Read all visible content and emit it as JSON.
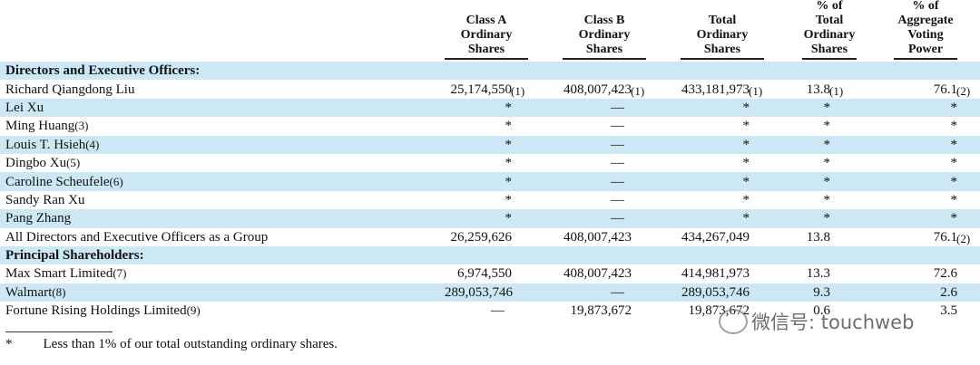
{
  "table": {
    "columns": [
      [
        "Class A",
        "Ordinary",
        "Shares"
      ],
      [
        "Class B",
        "Ordinary",
        "Shares"
      ],
      [
        "Total",
        "Ordinary",
        "Shares"
      ],
      [
        "% of",
        "Total",
        "Ordinary",
        "Shares"
      ],
      [
        "% of",
        "Aggregate",
        "Voting",
        "Power"
      ]
    ],
    "rows": [
      {
        "label": "Directors and Executive Officers:"
      },
      {
        "label": "Richard Qiangdong Liu",
        "cells": [
          {
            "value": "25,174,550",
            "note": "(1)"
          },
          {
            "value": "408,007,423",
            "note": "(1)"
          },
          {
            "value": "433,181,973",
            "note": "(1)"
          },
          {
            "value": "13.8",
            "note": "(1)"
          },
          {
            "value": "76.1",
            "note": "(2)"
          }
        ]
      },
      {
        "label": "Lei Xu",
        "cells": [
          "*",
          "—",
          "*",
          "*",
          "*"
        ]
      },
      {
        "label": "Ming Huang",
        "note": "(3)",
        "cells": [
          "*",
          "—",
          "*",
          "*",
          "*"
        ]
      },
      {
        "label": "Louis T. Hsieh",
        "note": "(4)",
        "cells": [
          "*",
          "—",
          "*",
          "*",
          "*"
        ]
      },
      {
        "label": "Dingbo Xu",
        "note": "(5)",
        "cells": [
          "*",
          "—",
          "*",
          "*",
          "*"
        ]
      },
      {
        "label": "Caroline Scheufele",
        "note": "(6)",
        "cells": [
          "*",
          "—",
          "*",
          "*",
          "*"
        ]
      },
      {
        "label": "Sandy Ran Xu",
        "cells": [
          "*",
          "—",
          "*",
          "*",
          "*"
        ]
      },
      {
        "label": "Pang Zhang",
        "cells": [
          "*",
          "—",
          "*",
          "*",
          "*"
        ]
      },
      {
        "label": "All Directors and Executive Officers as a Group",
        "cells": [
          "26,259,626",
          "408,007,423",
          "434,267,049",
          "13.8",
          {
            "value": "76.1",
            "note": "(2)"
          }
        ]
      },
      {
        "label": "Principal Shareholders:"
      },
      {
        "label": "Max Smart Limited",
        "note": "(7)",
        "cells": [
          "6,974,550",
          "408,007,423",
          "414,981,973",
          "13.3",
          "72.6"
        ]
      },
      {
        "label": "Walmart",
        "note": "(8)",
        "cells": [
          "289,053,746",
          "—",
          "289,053,746",
          "9.3",
          "2.6"
        ]
      },
      {
        "label": "Fortune Rising Holdings Limited",
        "note": "(9)",
        "cells": [
          "—",
          "19,873,672",
          "19,873,672",
          "0.6",
          "3.5"
        ]
      }
    ]
  },
  "footnote": {
    "marker": "*",
    "text": "Less than 1% of our total outstanding ordinary shares."
  },
  "watermark": "微信号: touchweb"
}
